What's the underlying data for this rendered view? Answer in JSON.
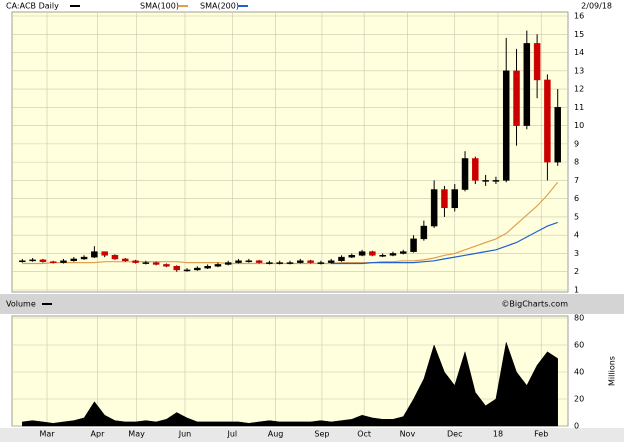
{
  "chart_data": [
    {
      "type": "candlestick",
      "title": "CA:ACB Daily",
      "date": "2/09/18",
      "title_color": "#000000",
      "x": [
        0,
        1,
        2,
        3,
        4,
        5,
        6,
        7,
        8,
        9,
        10,
        11,
        12,
        13,
        14,
        15,
        16,
        17,
        18,
        19,
        20,
        21,
        22,
        23,
        24,
        25,
        26,
        27,
        28,
        29,
        30,
        31,
        32,
        33,
        34,
        35,
        36,
        37,
        38,
        39,
        40,
        41,
        42,
        43,
        44,
        45,
        46,
        47,
        48,
        49,
        50,
        51,
        52
      ],
      "open": [
        2.55,
        2.6,
        2.65,
        2.55,
        2.5,
        2.6,
        2.7,
        2.8,
        3.1,
        2.9,
        2.7,
        2.6,
        2.5,
        2.5,
        2.4,
        2.3,
        2.1,
        2.1,
        2.2,
        2.3,
        2.4,
        2.5,
        2.6,
        2.6,
        2.5,
        2.5,
        2.5,
        2.5,
        2.6,
        2.5,
        2.5,
        2.6,
        2.8,
        2.9,
        3.1,
        2.9,
        2.9,
        3.0,
        3.1,
        3.8,
        4.5,
        6.5,
        5.5,
        6.5,
        8.2,
        7.0,
        7.0,
        7.0,
        13.0,
        10.0,
        14.5,
        12.5,
        8.0
      ],
      "high": [
        2.7,
        2.75,
        2.7,
        2.6,
        2.7,
        2.8,
        2.9,
        3.4,
        3.1,
        2.95,
        2.75,
        2.65,
        2.6,
        2.55,
        2.45,
        2.35,
        2.2,
        2.3,
        2.4,
        2.5,
        2.6,
        2.7,
        2.7,
        2.65,
        2.6,
        2.6,
        2.6,
        2.7,
        2.65,
        2.6,
        2.7,
        2.9,
        3.0,
        3.2,
        3.15,
        3.0,
        3.1,
        3.2,
        4.0,
        4.8,
        7.0,
        6.7,
        6.8,
        8.6,
        8.3,
        7.3,
        7.2,
        14.8,
        14.2,
        15.2,
        15.0,
        12.8,
        12.0
      ],
      "low": [
        2.5,
        2.55,
        2.5,
        2.45,
        2.45,
        2.55,
        2.65,
        2.75,
        2.8,
        2.65,
        2.55,
        2.45,
        2.4,
        2.35,
        2.25,
        2.0,
        2.0,
        2.05,
        2.15,
        2.25,
        2.35,
        2.45,
        2.5,
        2.45,
        2.4,
        2.4,
        2.4,
        2.45,
        2.45,
        2.4,
        2.45,
        2.55,
        2.75,
        2.85,
        2.85,
        2.8,
        2.85,
        2.95,
        3.05,
        3.7,
        4.4,
        5.0,
        5.3,
        6.4,
        6.8,
        6.7,
        6.8,
        6.9,
        8.9,
        9.8,
        11.5,
        7.0,
        7.8
      ],
      "close": [
        2.6,
        2.65,
        2.55,
        2.5,
        2.6,
        2.7,
        2.8,
        3.1,
        2.9,
        2.7,
        2.6,
        2.5,
        2.5,
        2.4,
        2.3,
        2.1,
        2.1,
        2.2,
        2.3,
        2.4,
        2.5,
        2.6,
        2.6,
        2.5,
        2.5,
        2.5,
        2.5,
        2.6,
        2.5,
        2.5,
        2.6,
        2.8,
        2.9,
        3.1,
        2.9,
        2.9,
        3.0,
        3.1,
        3.8,
        4.5,
        6.5,
        5.5,
        6.5,
        8.2,
        7.0,
        7.0,
        7.0,
        13.0,
        10.0,
        14.5,
        12.5,
        8.0,
        11.0
      ],
      "up_color": "#000000",
      "down_color": "#cc0000",
      "series": [
        {
          "name": "SMA(100)",
          "color": "#e0a050",
          "values": [
            2.45,
            2.45,
            2.45,
            2.5,
            2.5,
            2.5,
            2.5,
            2.5,
            2.55,
            2.55,
            2.55,
            2.55,
            2.55,
            2.55,
            2.55,
            2.55,
            2.5,
            2.5,
            2.5,
            2.5,
            2.45,
            2.45,
            2.45,
            2.45,
            2.45,
            2.45,
            2.45,
            2.45,
            2.45,
            2.45,
            2.45,
            2.5,
            2.5,
            2.5,
            2.5,
            2.55,
            2.55,
            2.6,
            2.6,
            2.65,
            2.75,
            2.9,
            3.0,
            3.2,
            3.4,
            3.6,
            3.8,
            4.1,
            4.6,
            5.1,
            5.6,
            6.2,
            6.9
          ]
        },
        {
          "name": "SMA(200)",
          "color": "#2060d0",
          "values": [
            null,
            null,
            null,
            null,
            null,
            null,
            null,
            null,
            null,
            null,
            null,
            null,
            null,
            null,
            null,
            null,
            null,
            null,
            null,
            null,
            null,
            null,
            null,
            null,
            null,
            null,
            null,
            null,
            null,
            null,
            2.45,
            2.45,
            2.45,
            2.45,
            2.5,
            2.5,
            2.5,
            2.5,
            2.5,
            2.55,
            2.6,
            2.7,
            2.8,
            2.9,
            3.0,
            3.1,
            3.2,
            3.4,
            3.6,
            3.9,
            4.2,
            4.5,
            4.7
          ]
        }
      ],
      "xlim": [
        -1,
        53
      ],
      "ylim": [
        1,
        16
      ],
      "yticks": [
        1,
        2,
        3,
        4,
        5,
        6,
        7,
        8,
        9,
        10,
        11,
        12,
        13,
        14,
        15,
        16
      ],
      "grid": true
    },
    {
      "type": "area",
      "title": "Volume",
      "annotation": "©BigCharts.com",
      "y2label": "Millions",
      "color": "#000000",
      "x": [
        0,
        1,
        2,
        3,
        4,
        5,
        6,
        7,
        8,
        9,
        10,
        11,
        12,
        13,
        14,
        15,
        16,
        17,
        18,
        19,
        20,
        21,
        22,
        23,
        24,
        25,
        26,
        27,
        28,
        29,
        30,
        31,
        32,
        33,
        34,
        35,
        36,
        37,
        38,
        39,
        40,
        41,
        42,
        43,
        44,
        45,
        46,
        47,
        48,
        49,
        50,
        51,
        52
      ],
      "values": [
        3,
        4,
        3,
        2,
        3,
        4,
        6,
        18,
        8,
        4,
        3,
        3,
        4,
        3,
        5,
        10,
        6,
        3,
        3,
        3,
        3,
        3,
        2,
        3,
        4,
        3,
        3,
        3,
        3,
        4,
        3,
        4,
        5,
        8,
        6,
        5,
        5,
        7,
        20,
        35,
        60,
        40,
        30,
        55,
        25,
        15,
        20,
        62,
        40,
        30,
        45,
        55,
        50
      ],
      "xlim": [
        -1,
        53
      ],
      "xticks": [
        {
          "value": 2.4,
          "label": "Mar"
        },
        {
          "value": 7.3,
          "label": "Apr"
        },
        {
          "value": 11.1,
          "label": "May"
        },
        {
          "value": 15.8,
          "label": "Jun"
        },
        {
          "value": 20.4,
          "label": "Jul"
        },
        {
          "value": 24.6,
          "label": "Aug"
        },
        {
          "value": 29.1,
          "label": "Sep"
        },
        {
          "value": 33.2,
          "label": "Oct"
        },
        {
          "value": 37.4,
          "label": "Nov"
        },
        {
          "value": 42,
          "label": "Dec"
        },
        {
          "value": 46.2,
          "label": "18"
        },
        {
          "value": 50.4,
          "label": "Feb"
        }
      ],
      "ylim": [
        0,
        80
      ],
      "yticks": [
        0,
        20,
        40,
        60,
        80
      ],
      "grid": true
    }
  ]
}
